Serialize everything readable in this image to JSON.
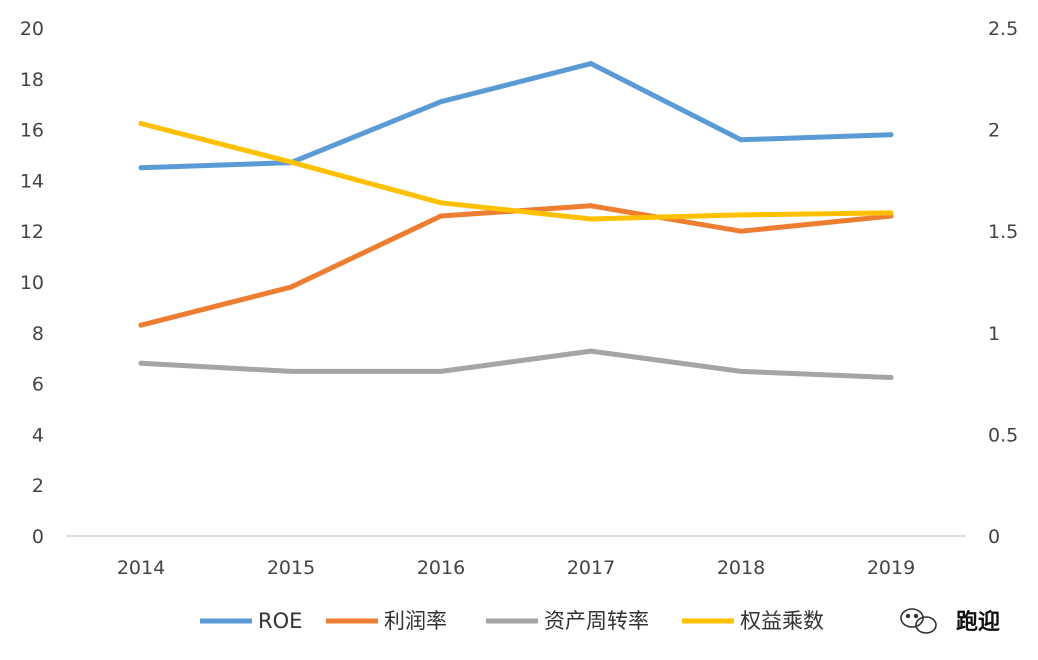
{
  "chart_data": {
    "type": "line",
    "categories": [
      "2014",
      "2015",
      "2016",
      "2017",
      "2018",
      "2019"
    ],
    "y_left": {
      "ticks": [
        "0",
        "2",
        "4",
        "6",
        "8",
        "10",
        "12",
        "14",
        "16",
        "18",
        "20"
      ],
      "range": [
        0,
        20
      ]
    },
    "y_right": {
      "ticks": [
        "0",
        "0.5",
        "1",
        "1.5",
        "2",
        "2.5"
      ],
      "range": [
        0,
        2.5
      ]
    },
    "series": [
      {
        "name": "ROE",
        "axis": "left",
        "color": "#5b9bd5",
        "values": [
          14.5,
          14.7,
          17.1,
          18.6,
          15.6,
          15.8
        ]
      },
      {
        "name": "利润率",
        "axis": "left",
        "color": "#ed7d31",
        "values": [
          8.3,
          9.8,
          12.6,
          13.0,
          12.0,
          12.6
        ]
      },
      {
        "name": "资产周转率",
        "axis": "right",
        "color": "#a5a5a5",
        "values": [
          0.85,
          0.81,
          0.81,
          0.91,
          0.81,
          0.78
        ]
      },
      {
        "name": "权益乘数",
        "axis": "right",
        "color": "#ffc000",
        "values": [
          2.03,
          1.84,
          1.64,
          1.56,
          1.58,
          1.59
        ]
      }
    ],
    "legend_position": "bottom",
    "grid": false
  },
  "watermark": {
    "text": "跑迎",
    "icon": "wechat-icon"
  }
}
